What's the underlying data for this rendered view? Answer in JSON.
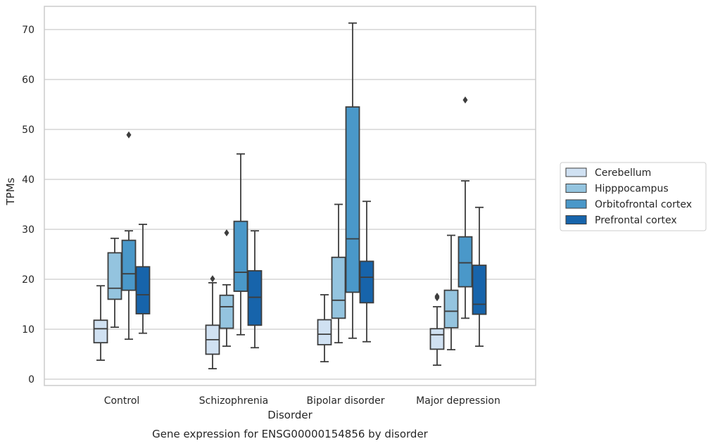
{
  "chart_data": {
    "type": "box",
    "title": "Gene expression for ENSG00000154856 by disorder",
    "xlabel": "Disorder",
    "ylabel": "TPMs",
    "ylim": [
      -1.2,
      75
    ],
    "yticks": [
      0,
      10,
      20,
      30,
      40,
      50,
      60,
      70
    ],
    "grid": true,
    "legend_position": "right",
    "categories": [
      "Control",
      "Schizophrenia",
      "Bipolar disorder",
      "Major depression"
    ],
    "series": [
      {
        "name": "Cerebellum",
        "color": "#d0e1f2",
        "boxes": [
          {
            "whislo": 3.8,
            "q1": 7.3,
            "med": 10.1,
            "q3": 11.8,
            "whishi": 18.7,
            "fliers": []
          },
          {
            "whislo": 2.1,
            "q1": 5.0,
            "med": 7.9,
            "q3": 10.8,
            "whishi": 19.3,
            "fliers": [
              20.1
            ]
          },
          {
            "whislo": 3.5,
            "q1": 6.9,
            "med": 9.0,
            "q3": 11.9,
            "whishi": 16.9,
            "fliers": []
          },
          {
            "whislo": 2.8,
            "q1": 6.0,
            "med": 8.9,
            "q3": 10.1,
            "whishi": 14.5,
            "fliers": [
              16.3,
              16.6
            ]
          }
        ]
      },
      {
        "name": "Hipppocampus",
        "color": "#94c4df",
        "boxes": [
          {
            "whislo": 10.4,
            "q1": 16.0,
            "med": 18.2,
            "q3": 25.3,
            "whishi": 28.2,
            "fliers": []
          },
          {
            "whislo": 6.6,
            "q1": 10.2,
            "med": 14.5,
            "q3": 16.8,
            "whishi": 18.9,
            "fliers": [
              29.3
            ]
          },
          {
            "whislo": 7.3,
            "q1": 12.2,
            "med": 15.8,
            "q3": 24.4,
            "whishi": 35.0,
            "fliers": []
          },
          {
            "whislo": 5.9,
            "q1": 10.3,
            "med": 13.6,
            "q3": 17.8,
            "whishi": 28.8,
            "fliers": []
          }
        ]
      },
      {
        "name": "Orbitofrontal cortex",
        "color": "#4a98c9",
        "boxes": [
          {
            "whislo": 8.0,
            "q1": 17.8,
            "med": 21.1,
            "q3": 27.8,
            "whishi": 29.7,
            "fliers": [
              48.9
            ]
          },
          {
            "whislo": 8.9,
            "q1": 17.6,
            "med": 21.4,
            "q3": 31.6,
            "whishi": 45.1,
            "fliers": []
          },
          {
            "whislo": 8.2,
            "q1": 17.4,
            "med": 28.1,
            "q3": 54.5,
            "whishi": 71.3,
            "fliers": []
          },
          {
            "whislo": 12.2,
            "q1": 18.5,
            "med": 23.3,
            "q3": 28.5,
            "whishi": 39.7,
            "fliers": [
              55.9
            ]
          }
        ]
      },
      {
        "name": "Prefrontal cortex",
        "color": "#1764ab",
        "boxes": [
          {
            "whislo": 9.2,
            "q1": 13.1,
            "med": 16.9,
            "q3": 22.5,
            "whishi": 31.0,
            "fliers": []
          },
          {
            "whislo": 6.3,
            "q1": 10.8,
            "med": 16.4,
            "q3": 21.7,
            "whishi": 29.7,
            "fliers": []
          },
          {
            "whislo": 7.5,
            "q1": 15.3,
            "med": 20.4,
            "q3": 23.6,
            "whishi": 35.6,
            "fliers": []
          },
          {
            "whislo": 6.6,
            "q1": 13.0,
            "med": 15.0,
            "q3": 22.8,
            "whishi": 34.4,
            "fliers": []
          }
        ]
      }
    ]
  },
  "colors": {
    "axis_frame": "#cccccc",
    "grid": "#cccccc",
    "box_edge": "#3d3d3d",
    "background": "#ffffff"
  }
}
